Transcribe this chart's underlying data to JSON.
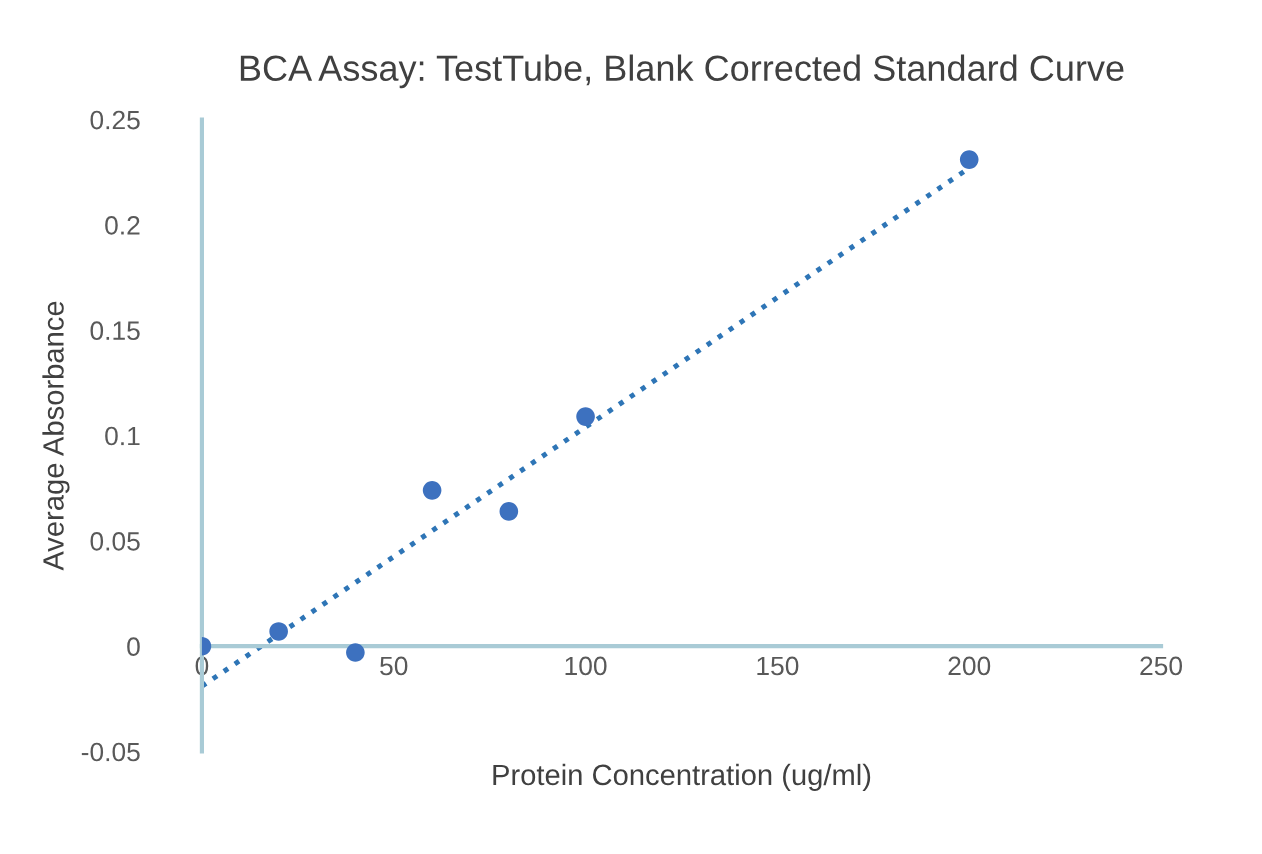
{
  "chart_data": {
    "type": "scatter",
    "title": "BCA Assay: TestTube, Blank Corrected Standard Curve",
    "xlabel": "Protein Concentration (ug/ml)",
    "ylabel": "Average Absorbance",
    "series": [
      {
        "color": "#3d71bf",
        "x": [
          0,
          20,
          40,
          60,
          80,
          100,
          200
        ],
        "values": [
          0,
          0.007,
          -0.003,
          0.074,
          0.064,
          0.109,
          0.231
        ],
        "marker": "circle"
      },
      {
        "type": "line",
        "color": "#2e75b6",
        "x": [
          0,
          200
        ],
        "values": [
          -0.019,
          0.227
        ],
        "line_style": "dotted",
        "marker": "none"
      }
    ],
    "xlim": [
      0,
      250
    ],
    "xticks": [
      0,
      50,
      100,
      150,
      200,
      250
    ],
    "ylim": [
      -0.05,
      0.25
    ],
    "yticks": [
      -0.05,
      0,
      0.05,
      0.1,
      0.15,
      0.2,
      0.25
    ],
    "grid": false,
    "legend": false
  }
}
